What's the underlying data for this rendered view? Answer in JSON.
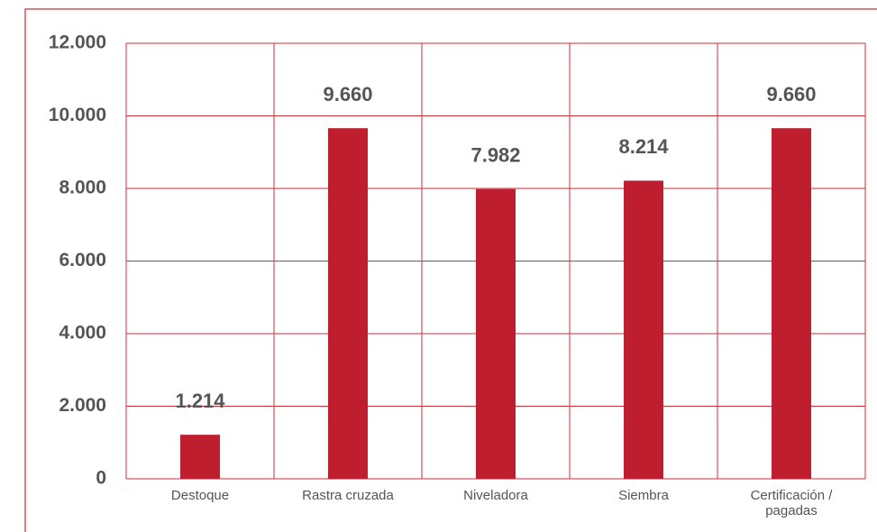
{
  "chart_data": {
    "type": "bar",
    "categories": [
      "Destoque",
      "Rastra cruzada",
      "Niveladora",
      "Siembra",
      "Certificación / pagadas"
    ],
    "values": [
      1214,
      9660,
      7982,
      8214,
      9660
    ],
    "value_labels": [
      "1.214",
      "9.660",
      "7.982",
      "8.214",
      "9.660"
    ],
    "color": "#be1e2d",
    "ylim": [
      0,
      12000
    ],
    "yticks": [
      0,
      {
        "value": 2000,
        "label": "2.000"
      },
      {
        "value": 4000,
        "label": "4.000"
      },
      {
        "value": 6000,
        "label": "6.000"
      },
      {
        "value": 8000,
        "label": "8.000"
      },
      {
        "value": 10000,
        "label": "10.000"
      },
      {
        "value": 12000,
        "label": "12.000"
      }
    ],
    "grid": true
  }
}
